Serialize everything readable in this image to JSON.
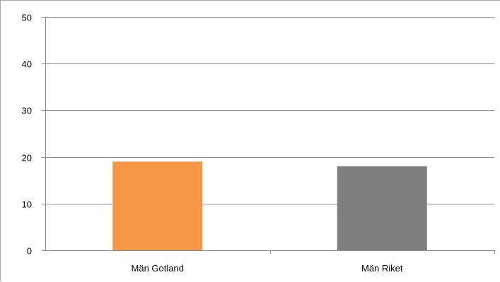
{
  "chart_data": {
    "type": "bar",
    "categories": [
      "Män Gotland",
      "Män Riket"
    ],
    "values": [
      19,
      18
    ],
    "bar_colors": [
      "#f79646",
      "#7f7f7f"
    ],
    "title": "",
    "xlabel": "",
    "ylabel": "",
    "ylim": [
      0,
      50
    ],
    "yticks": [
      0,
      10,
      20,
      30,
      40,
      50
    ],
    "grid": true,
    "legend": "none",
    "gridline_color": "#8c8c8c",
    "axis_color": "#8c8c8c"
  }
}
